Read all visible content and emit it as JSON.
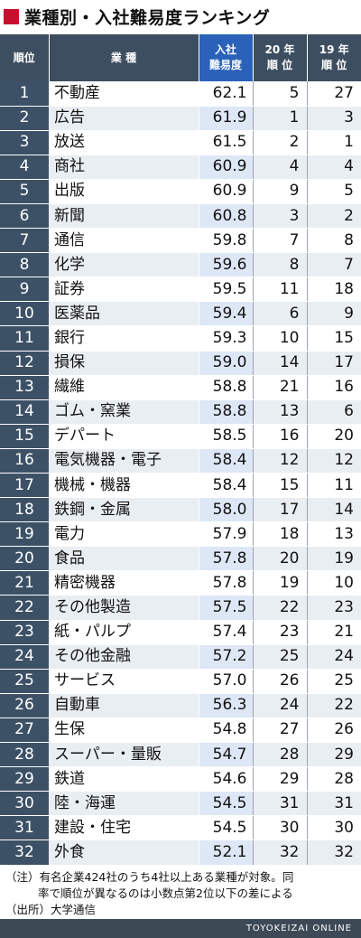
{
  "title": "業種別・入社難易度ランキング",
  "headers": {
    "rank": "順位",
    "industry": "業 種",
    "score_line1": "入社",
    "score_line2": "難易度",
    "p20_line1": "20 年",
    "p20_line2": "順 位",
    "p19_line1": "19 年",
    "p19_line2": "順 位"
  },
  "rows": [
    {
      "rank": "1",
      "industry": "不動産",
      "score": "62.1",
      "p20": "5",
      "p19": "27"
    },
    {
      "rank": "2",
      "industry": "広告",
      "score": "61.9",
      "p20": "1",
      "p19": "3"
    },
    {
      "rank": "3",
      "industry": "放送",
      "score": "61.5",
      "p20": "2",
      "p19": "1"
    },
    {
      "rank": "4",
      "industry": "商社",
      "score": "60.9",
      "p20": "4",
      "p19": "4"
    },
    {
      "rank": "5",
      "industry": "出版",
      "score": "60.9",
      "p20": "9",
      "p19": "5"
    },
    {
      "rank": "6",
      "industry": "新聞",
      "score": "60.8",
      "p20": "3",
      "p19": "2"
    },
    {
      "rank": "7",
      "industry": "通信",
      "score": "59.8",
      "p20": "7",
      "p19": "8"
    },
    {
      "rank": "8",
      "industry": "化学",
      "score": "59.6",
      "p20": "8",
      "p19": "7"
    },
    {
      "rank": "9",
      "industry": "証券",
      "score": "59.5",
      "p20": "11",
      "p19": "18"
    },
    {
      "rank": "10",
      "industry": "医薬品",
      "score": "59.4",
      "p20": "6",
      "p19": "9"
    },
    {
      "rank": "11",
      "industry": "銀行",
      "score": "59.3",
      "p20": "10",
      "p19": "15"
    },
    {
      "rank": "12",
      "industry": "損保",
      "score": "59.0",
      "p20": "14",
      "p19": "17"
    },
    {
      "rank": "13",
      "industry": "繊維",
      "score": "58.8",
      "p20": "21",
      "p19": "16"
    },
    {
      "rank": "14",
      "industry": "ゴム・窯業",
      "score": "58.8",
      "p20": "13",
      "p19": "6"
    },
    {
      "rank": "15",
      "industry": "デパート",
      "score": "58.5",
      "p20": "16",
      "p19": "20"
    },
    {
      "rank": "16",
      "industry": "電気機器・電子",
      "score": "58.4",
      "p20": "12",
      "p19": "12"
    },
    {
      "rank": "17",
      "industry": "機械・機器",
      "score": "58.4",
      "p20": "15",
      "p19": "11"
    },
    {
      "rank": "18",
      "industry": "鉄鋼・金属",
      "score": "58.0",
      "p20": "17",
      "p19": "14"
    },
    {
      "rank": "19",
      "industry": "電力",
      "score": "57.9",
      "p20": "18",
      "p19": "13"
    },
    {
      "rank": "20",
      "industry": "食品",
      "score": "57.8",
      "p20": "20",
      "p19": "19"
    },
    {
      "rank": "21",
      "industry": "精密機器",
      "score": "57.8",
      "p20": "19",
      "p19": "10"
    },
    {
      "rank": "22",
      "industry": "その他製造",
      "score": "57.5",
      "p20": "22",
      "p19": "23"
    },
    {
      "rank": "23",
      "industry": "紙・パルプ",
      "score": "57.4",
      "p20": "23",
      "p19": "21"
    },
    {
      "rank": "24",
      "industry": "その他金融",
      "score": "57.2",
      "p20": "25",
      "p19": "24"
    },
    {
      "rank": "25",
      "industry": "サービス",
      "score": "57.0",
      "p20": "26",
      "p19": "25"
    },
    {
      "rank": "26",
      "industry": "自動車",
      "score": "56.3",
      "p20": "24",
      "p19": "22"
    },
    {
      "rank": "27",
      "industry": "生保",
      "score": "54.8",
      "p20": "27",
      "p19": "26"
    },
    {
      "rank": "28",
      "industry": "スーパー・量販",
      "score": "54.7",
      "p20": "28",
      "p19": "29"
    },
    {
      "rank": "29",
      "industry": "鉄道",
      "score": "54.6",
      "p20": "29",
      "p19": "28"
    },
    {
      "rank": "30",
      "industry": "陸・海運",
      "score": "54.5",
      "p20": "31",
      "p19": "31"
    },
    {
      "rank": "31",
      "industry": "建設・住宅",
      "score": "54.5",
      "p20": "30",
      "p19": "30"
    },
    {
      "rank": "32",
      "industry": "外食",
      "score": "52.1",
      "p20": "32",
      "p19": "32"
    }
  ],
  "notes": {
    "line1": "（注）有名企業424社のうち4社以上ある業種が対象。同",
    "line2": "率で順位が異なるのは小数点第2位以下の差による",
    "line3": "（出所）大学通信"
  },
  "footer": "TOYOKEIZAI ONLINE",
  "colors": {
    "title_mark": "#c8102e",
    "header_dark": "#3d4e60",
    "header_blue": "#2a62b9",
    "rank_cell": "#3d5166",
    "footer_bar": "#3d4a56"
  }
}
